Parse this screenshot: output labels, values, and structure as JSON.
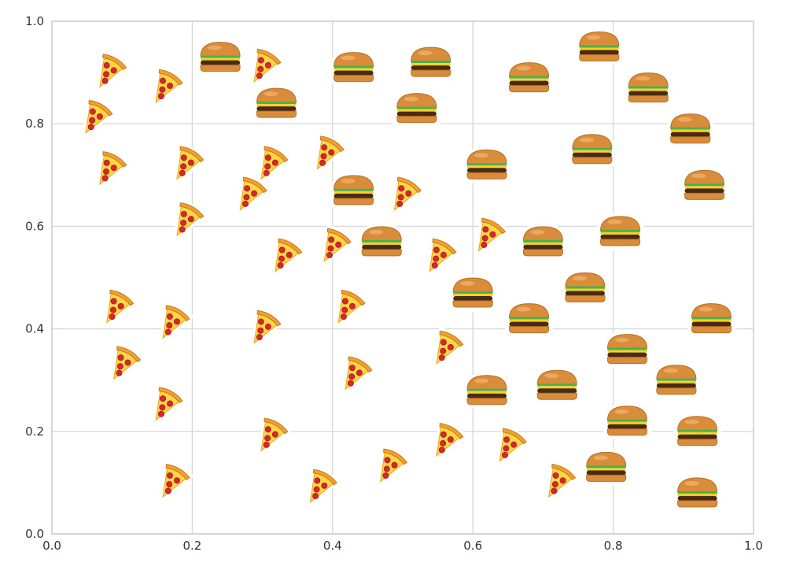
{
  "chart_data": {
    "type": "scatter",
    "title": "",
    "xlabel": "",
    "ylabel": "",
    "xlim": [
      0.0,
      1.0
    ],
    "ylim": [
      0.0,
      1.0
    ],
    "grid": true,
    "x_ticks": [
      "0.0",
      "0.2",
      "0.4",
      "0.6",
      "0.8",
      "1.0"
    ],
    "y_ticks": [
      "0.0",
      "0.2",
      "0.4",
      "0.6",
      "0.8",
      "1.0"
    ],
    "series": [
      {
        "name": "pizza",
        "marker": "pizza-slice",
        "points": [
          {
            "x": 0.08,
            "y": 0.9
          },
          {
            "x": 0.16,
            "y": 0.87
          },
          {
            "x": 0.3,
            "y": 0.91
          },
          {
            "x": 0.06,
            "y": 0.81
          },
          {
            "x": 0.08,
            "y": 0.71
          },
          {
            "x": 0.19,
            "y": 0.72
          },
          {
            "x": 0.31,
            "y": 0.72
          },
          {
            "x": 0.39,
            "y": 0.74
          },
          {
            "x": 0.28,
            "y": 0.66
          },
          {
            "x": 0.5,
            "y": 0.66
          },
          {
            "x": 0.19,
            "y": 0.61
          },
          {
            "x": 0.33,
            "y": 0.54
          },
          {
            "x": 0.4,
            "y": 0.56
          },
          {
            "x": 0.55,
            "y": 0.54
          },
          {
            "x": 0.62,
            "y": 0.58
          },
          {
            "x": 0.09,
            "y": 0.44
          },
          {
            "x": 0.17,
            "y": 0.41
          },
          {
            "x": 0.3,
            "y": 0.4
          },
          {
            "x": 0.42,
            "y": 0.44
          },
          {
            "x": 0.56,
            "y": 0.36
          },
          {
            "x": 0.1,
            "y": 0.33
          },
          {
            "x": 0.43,
            "y": 0.31
          },
          {
            "x": 0.16,
            "y": 0.25
          },
          {
            "x": 0.31,
            "y": 0.19
          },
          {
            "x": 0.56,
            "y": 0.18
          },
          {
            "x": 0.65,
            "y": 0.17
          },
          {
            "x": 0.48,
            "y": 0.13
          },
          {
            "x": 0.17,
            "y": 0.1
          },
          {
            "x": 0.38,
            "y": 0.09
          },
          {
            "x": 0.72,
            "y": 0.1
          }
        ]
      },
      {
        "name": "hamburger",
        "marker": "hamburger",
        "points": [
          {
            "x": 0.24,
            "y": 0.93
          },
          {
            "x": 0.43,
            "y": 0.91
          },
          {
            "x": 0.54,
            "y": 0.92
          },
          {
            "x": 0.78,
            "y": 0.95
          },
          {
            "x": 0.68,
            "y": 0.89
          },
          {
            "x": 0.85,
            "y": 0.87
          },
          {
            "x": 0.32,
            "y": 0.84
          },
          {
            "x": 0.52,
            "y": 0.83
          },
          {
            "x": 0.91,
            "y": 0.79
          },
          {
            "x": 0.77,
            "y": 0.75
          },
          {
            "x": 0.62,
            "y": 0.72
          },
          {
            "x": 0.43,
            "y": 0.67
          },
          {
            "x": 0.93,
            "y": 0.68
          },
          {
            "x": 0.81,
            "y": 0.59
          },
          {
            "x": 0.47,
            "y": 0.57
          },
          {
            "x": 0.7,
            "y": 0.57
          },
          {
            "x": 0.6,
            "y": 0.47
          },
          {
            "x": 0.76,
            "y": 0.48
          },
          {
            "x": 0.68,
            "y": 0.42
          },
          {
            "x": 0.94,
            "y": 0.42
          },
          {
            "x": 0.82,
            "y": 0.36
          },
          {
            "x": 0.89,
            "y": 0.3
          },
          {
            "x": 0.62,
            "y": 0.28
          },
          {
            "x": 0.72,
            "y": 0.29
          },
          {
            "x": 0.82,
            "y": 0.22
          },
          {
            "x": 0.92,
            "y": 0.2
          },
          {
            "x": 0.79,
            "y": 0.13
          },
          {
            "x": 0.92,
            "y": 0.08
          }
        ]
      }
    ],
    "colors": {
      "crust": "#f0a030",
      "cheese": "#ffd54a",
      "pepperoni": "#d62828",
      "bun": "#d98c3a",
      "bun_highlight": "#eeb06a",
      "patty": "#4a2a12",
      "cheese_slice": "#f7d21e",
      "lettuce": "#4caf50",
      "outline": "#ffffff"
    }
  }
}
